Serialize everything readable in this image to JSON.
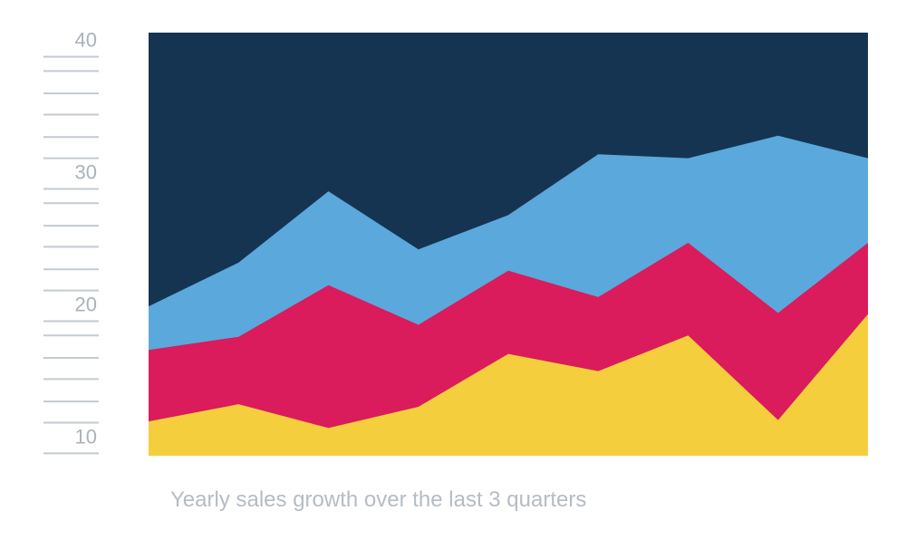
{
  "chart_data": {
    "type": "area",
    "stacked": true,
    "caption": "Yearly sales growth over the last 3 quarters",
    "title": "",
    "xlabel": "",
    "ylabel": "",
    "ylim": [
      9,
      41
    ],
    "y_tick_labels": [
      "10",
      "20",
      "30",
      "40"
    ],
    "y_tick_values": [
      10,
      20,
      30,
      40
    ],
    "minor_tick_values": [
      11.5,
      13.1,
      14.8,
      16.4,
      18.1,
      21.5,
      23.1,
      24.8,
      26.4,
      28.1,
      31.5,
      33.1,
      34.8,
      36.4,
      38.1
    ],
    "x": [
      1,
      2,
      3,
      4,
      5,
      6,
      7,
      8,
      9
    ],
    "grid": false,
    "legend": "none",
    "series": [
      {
        "color": "#f4ce3d",
        "values": [
          11.6,
          12.9,
          11.1,
          12.7,
          16.7,
          15.4,
          18.1,
          11.7,
          19.7
        ]
      },
      {
        "color": "#da1b5c",
        "values": [
          17.0,
          18.0,
          21.9,
          18.9,
          23.0,
          21.0,
          25.1,
          19.8,
          25.1
        ]
      },
      {
        "color": "#5aa8dc",
        "values": [
          20.3,
          23.6,
          29.0,
          24.6,
          27.2,
          31.8,
          31.5,
          33.2,
          31.5
        ]
      },
      {
        "color": "#153451",
        "values": [
          41.0,
          41.0,
          41.0,
          41.0,
          41.0,
          41.0,
          41.0,
          41.0,
          41.0
        ]
      }
    ]
  }
}
